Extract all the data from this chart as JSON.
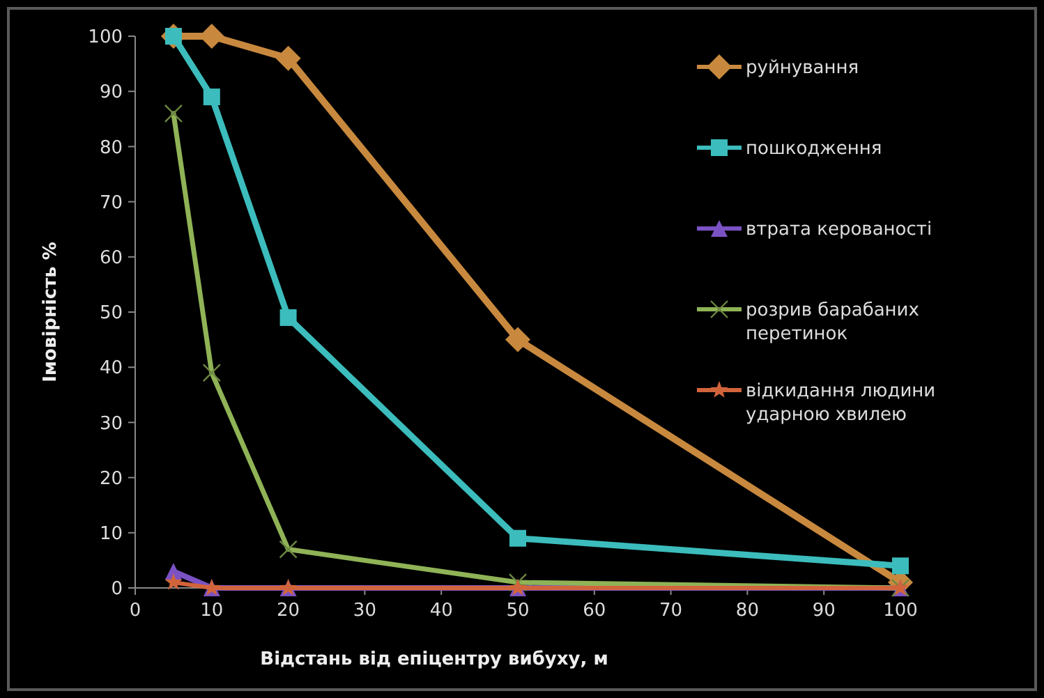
{
  "chart_data": {
    "type": "line",
    "xlabel": "Відстань від епіцентру вибуху, м",
    "ylabel": "Імовірність %",
    "x": [
      5,
      10,
      20,
      50,
      100
    ],
    "xlim": [
      0,
      100
    ],
    "xticks": [
      0,
      10,
      20,
      30,
      40,
      50,
      60,
      70,
      80,
      90,
      100
    ],
    "ylim": [
      0,
      100
    ],
    "yticks": [
      0,
      10,
      20,
      30,
      40,
      50,
      60,
      70,
      80,
      90,
      100
    ],
    "grid": false,
    "legend": "right",
    "line_style": "solid",
    "series": [
      {
        "name": "руйнування",
        "color": "#c8893e",
        "marker": "diamond",
        "values": [
          100,
          100,
          96,
          45,
          1
        ]
      },
      {
        "name": "пошкодження",
        "color": "#3cbcbc",
        "marker": "square",
        "values": [
          100,
          89,
          49,
          9,
          4
        ]
      },
      {
        "name": "втрата керованості",
        "color": "#7b52c4",
        "marker": "triangle",
        "values": [
          3,
          0,
          0,
          0,
          0
        ]
      },
      {
        "name": "розрив барабаних перетинок",
        "color": "#8fb356",
        "marker": "cross",
        "values": [
          86,
          39,
          7,
          1,
          0
        ]
      },
      {
        "name": "відкидання людини ударною хвилею",
        "color": "#d2643c",
        "marker": "star",
        "values": [
          1,
          0,
          0,
          0,
          0
        ]
      }
    ]
  }
}
